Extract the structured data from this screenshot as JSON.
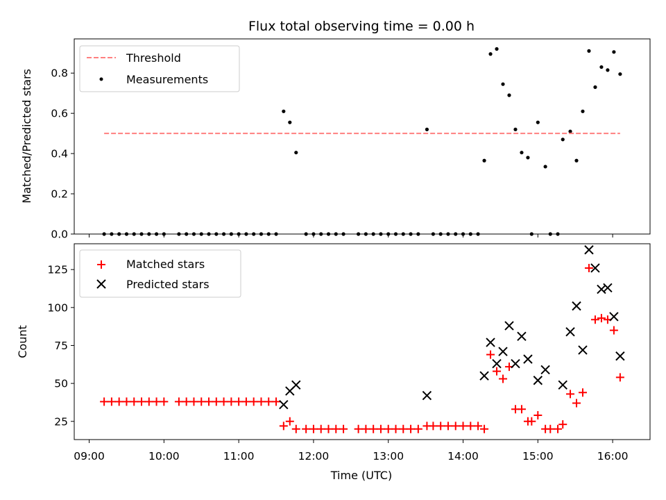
{
  "chart_data": [
    {
      "type": "scatter",
      "title": "Flux total observing time = 0.00 h",
      "ylabel": "Matched/Predicted stars",
      "xlabel": "",
      "x_range_hours": [
        8.8,
        16.5
      ],
      "ylim": [
        0,
        0.97
      ],
      "yticks": [
        0.0,
        0.2,
        0.4,
        0.6,
        0.8
      ],
      "ytick_labels": [
        "0.0",
        "0.2",
        "0.4",
        "0.6",
        "0.8"
      ],
      "grid": false,
      "legend_position": "top-left",
      "threshold": {
        "name": "Threshold",
        "value": 0.5,
        "x_start": "09:12",
        "x_end": "16:06",
        "color": "#ff7f7f"
      },
      "measurements": {
        "name": "Measurements",
        "color": "#000000",
        "points": [
          {
            "x": "09:12",
            "y": 0
          },
          {
            "x": "09:18",
            "y": 0
          },
          {
            "x": "09:24",
            "y": 0
          },
          {
            "x": "09:30",
            "y": 0
          },
          {
            "x": "09:36",
            "y": 0
          },
          {
            "x": "09:42",
            "y": 0
          },
          {
            "x": "09:48",
            "y": 0
          },
          {
            "x": "09:54",
            "y": 0
          },
          {
            "x": "10:00",
            "y": 0
          },
          {
            "x": "10:12",
            "y": 0
          },
          {
            "x": "10:18",
            "y": 0
          },
          {
            "x": "10:24",
            "y": 0
          },
          {
            "x": "10:30",
            "y": 0
          },
          {
            "x": "10:36",
            "y": 0
          },
          {
            "x": "10:42",
            "y": 0
          },
          {
            "x": "10:48",
            "y": 0
          },
          {
            "x": "10:54",
            "y": 0
          },
          {
            "x": "11:00",
            "y": 0
          },
          {
            "x": "11:06",
            "y": 0
          },
          {
            "x": "11:12",
            "y": 0
          },
          {
            "x": "11:18",
            "y": 0
          },
          {
            "x": "11:24",
            "y": 0
          },
          {
            "x": "11:30",
            "y": 0
          },
          {
            "x": "11:36",
            "y": 0.61
          },
          {
            "x": "11:41",
            "y": 0.555
          },
          {
            "x": "11:46",
            "y": 0.405
          },
          {
            "x": "11:54",
            "y": 0
          },
          {
            "x": "12:00",
            "y": 0
          },
          {
            "x": "12:06",
            "y": 0
          },
          {
            "x": "12:12",
            "y": 0
          },
          {
            "x": "12:18",
            "y": 0
          },
          {
            "x": "12:24",
            "y": 0
          },
          {
            "x": "12:36",
            "y": 0
          },
          {
            "x": "12:42",
            "y": 0
          },
          {
            "x": "12:48",
            "y": 0
          },
          {
            "x": "12:54",
            "y": 0
          },
          {
            "x": "13:00",
            "y": 0
          },
          {
            "x": "13:06",
            "y": 0
          },
          {
            "x": "13:12",
            "y": 0
          },
          {
            "x": "13:18",
            "y": 0
          },
          {
            "x": "13:24",
            "y": 0
          },
          {
            "x": "13:31",
            "y": 0.52
          },
          {
            "x": "13:36",
            "y": 0
          },
          {
            "x": "13:42",
            "y": 0
          },
          {
            "x": "13:48",
            "y": 0
          },
          {
            "x": "13:54",
            "y": 0
          },
          {
            "x": "14:00",
            "y": 0
          },
          {
            "x": "14:06",
            "y": 0
          },
          {
            "x": "14:12",
            "y": 0
          },
          {
            "x": "14:17",
            "y": 0.365
          },
          {
            "x": "14:22",
            "y": 0.895
          },
          {
            "x": "14:27",
            "y": 0.92
          },
          {
            "x": "14:32",
            "y": 0.745
          },
          {
            "x": "14:37",
            "y": 0.69
          },
          {
            "x": "14:42",
            "y": 0.52
          },
          {
            "x": "14:47",
            "y": 0.405
          },
          {
            "x": "14:52",
            "y": 0.38
          },
          {
            "x": "14:55",
            "y": 0
          },
          {
            "x": "15:00",
            "y": 0.555
          },
          {
            "x": "15:06",
            "y": 0.335
          },
          {
            "x": "15:10",
            "y": 0
          },
          {
            "x": "15:16",
            "y": 0
          },
          {
            "x": "15:20",
            "y": 0.47
          },
          {
            "x": "15:26",
            "y": 0.51
          },
          {
            "x": "15:31",
            "y": 0.365
          },
          {
            "x": "15:36",
            "y": 0.61
          },
          {
            "x": "15:41",
            "y": 0.91
          },
          {
            "x": "15:46",
            "y": 0.73
          },
          {
            "x": "15:51",
            "y": 0.83
          },
          {
            "x": "15:56",
            "y": 0.815
          },
          {
            "x": "16:01",
            "y": 0.905
          },
          {
            "x": "16:06",
            "y": 0.795
          }
        ]
      }
    },
    {
      "type": "scatter",
      "title": "",
      "xlabel": "Time (UTC)",
      "ylabel": "Count",
      "x_range_hours": [
        8.8,
        16.5
      ],
      "xticks": [
        "09:00",
        "10:00",
        "11:00",
        "12:00",
        "13:00",
        "14:00",
        "15:00",
        "16:00"
      ],
      "ylim": [
        13,
        142
      ],
      "yticks": [
        25,
        50,
        75,
        100,
        125
      ],
      "ytick_labels": [
        "25",
        "50",
        "75",
        "100",
        "125"
      ],
      "grid": false,
      "legend_position": "top-left",
      "series": [
        {
          "name": "Matched stars",
          "marker": "plus",
          "color": "#ff0000",
          "points": [
            {
              "x": "09:12",
              "y": 38
            },
            {
              "x": "09:18",
              "y": 38
            },
            {
              "x": "09:24",
              "y": 38
            },
            {
              "x": "09:30",
              "y": 38
            },
            {
              "x": "09:36",
              "y": 38
            },
            {
              "x": "09:42",
              "y": 38
            },
            {
              "x": "09:48",
              "y": 38
            },
            {
              "x": "09:54",
              "y": 38
            },
            {
              "x": "10:00",
              "y": 38
            },
            {
              "x": "10:12",
              "y": 38
            },
            {
              "x": "10:18",
              "y": 38
            },
            {
              "x": "10:24",
              "y": 38
            },
            {
              "x": "10:30",
              "y": 38
            },
            {
              "x": "10:36",
              "y": 38
            },
            {
              "x": "10:42",
              "y": 38
            },
            {
              "x": "10:48",
              "y": 38
            },
            {
              "x": "10:54",
              "y": 38
            },
            {
              "x": "11:00",
              "y": 38
            },
            {
              "x": "11:06",
              "y": 38
            },
            {
              "x": "11:12",
              "y": 38
            },
            {
              "x": "11:18",
              "y": 38
            },
            {
              "x": "11:24",
              "y": 38
            },
            {
              "x": "11:30",
              "y": 38
            },
            {
              "x": "11:36",
              "y": 22
            },
            {
              "x": "11:41",
              "y": 25
            },
            {
              "x": "11:46",
              "y": 20
            },
            {
              "x": "11:54",
              "y": 20
            },
            {
              "x": "12:00",
              "y": 20
            },
            {
              "x": "12:06",
              "y": 20
            },
            {
              "x": "12:12",
              "y": 20
            },
            {
              "x": "12:18",
              "y": 20
            },
            {
              "x": "12:24",
              "y": 20
            },
            {
              "x": "12:36",
              "y": 20
            },
            {
              "x": "12:42",
              "y": 20
            },
            {
              "x": "12:48",
              "y": 20
            },
            {
              "x": "12:54",
              "y": 20
            },
            {
              "x": "13:00",
              "y": 20
            },
            {
              "x": "13:06",
              "y": 20
            },
            {
              "x": "13:12",
              "y": 20
            },
            {
              "x": "13:18",
              "y": 20
            },
            {
              "x": "13:24",
              "y": 20
            },
            {
              "x": "13:31",
              "y": 22
            },
            {
              "x": "13:36",
              "y": 22
            },
            {
              "x": "13:42",
              "y": 22
            },
            {
              "x": "13:48",
              "y": 22
            },
            {
              "x": "13:54",
              "y": 22
            },
            {
              "x": "14:00",
              "y": 22
            },
            {
              "x": "14:06",
              "y": 22
            },
            {
              "x": "14:12",
              "y": 22
            },
            {
              "x": "14:17",
              "y": 20
            },
            {
              "x": "14:22",
              "y": 69
            },
            {
              "x": "14:27",
              "y": 58
            },
            {
              "x": "14:32",
              "y": 53
            },
            {
              "x": "14:37",
              "y": 61
            },
            {
              "x": "14:42",
              "y": 33
            },
            {
              "x": "14:47",
              "y": 33
            },
            {
              "x": "14:52",
              "y": 25
            },
            {
              "x": "14:55",
              "y": 25
            },
            {
              "x": "15:00",
              "y": 29
            },
            {
              "x": "15:06",
              "y": 20
            },
            {
              "x": "15:10",
              "y": 20
            },
            {
              "x": "15:16",
              "y": 20
            },
            {
              "x": "15:20",
              "y": 23
            },
            {
              "x": "15:26",
              "y": 43
            },
            {
              "x": "15:31",
              "y": 37
            },
            {
              "x": "15:36",
              "y": 44
            },
            {
              "x": "15:41",
              "y": 126
            },
            {
              "x": "15:46",
              "y": 92
            },
            {
              "x": "15:51",
              "y": 93
            },
            {
              "x": "15:56",
              "y": 92
            },
            {
              "x": "16:01",
              "y": 85
            },
            {
              "x": "16:06",
              "y": 54
            }
          ]
        },
        {
          "name": "Predicted stars",
          "marker": "x",
          "color": "#000000",
          "points": [
            {
              "x": "11:36",
              "y": 36
            },
            {
              "x": "11:41",
              "y": 45
            },
            {
              "x": "11:46",
              "y": 49
            },
            {
              "x": "13:31",
              "y": 42
            },
            {
              "x": "14:17",
              "y": 55
            },
            {
              "x": "14:22",
              "y": 77
            },
            {
              "x": "14:27",
              "y": 63
            },
            {
              "x": "14:32",
              "y": 71
            },
            {
              "x": "14:37",
              "y": 88
            },
            {
              "x": "14:42",
              "y": 63
            },
            {
              "x": "14:47",
              "y": 81
            },
            {
              "x": "14:52",
              "y": 66
            },
            {
              "x": "15:00",
              "y": 52
            },
            {
              "x": "15:06",
              "y": 59
            },
            {
              "x": "15:20",
              "y": 49
            },
            {
              "x": "15:26",
              "y": 84
            },
            {
              "x": "15:31",
              "y": 101
            },
            {
              "x": "15:36",
              "y": 72
            },
            {
              "x": "15:41",
              "y": 138
            },
            {
              "x": "15:46",
              "y": 126
            },
            {
              "x": "15:51",
              "y": 112
            },
            {
              "x": "15:56",
              "y": 113
            },
            {
              "x": "16:01",
              "y": 94
            },
            {
              "x": "16:06",
              "y": 68
            }
          ]
        }
      ]
    }
  ]
}
